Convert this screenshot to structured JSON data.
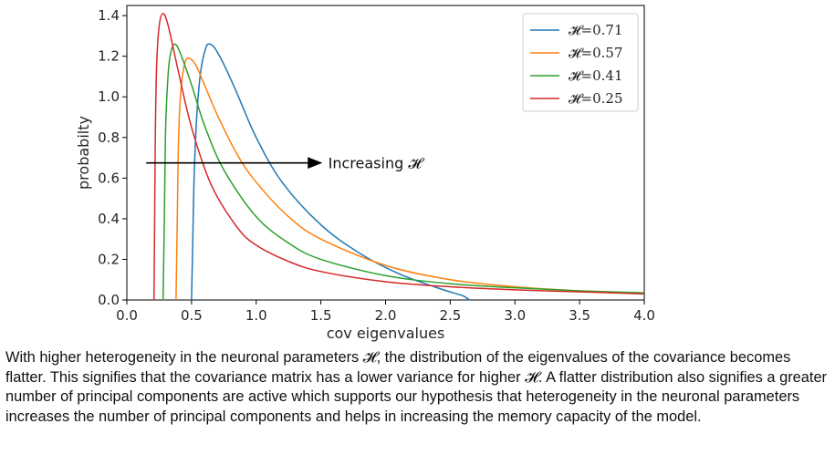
{
  "chart_data": {
    "type": "line",
    "xlabel": "cov eigenvalues",
    "ylabel": "probabilty",
    "xlim": [
      0.0,
      4.0
    ],
    "ylim": [
      0.0,
      1.45
    ],
    "x_ticks": [
      "0.0",
      "0.5",
      "1.0",
      "1.5",
      "2.0",
      "2.5",
      "3.0",
      "3.5",
      "4.0"
    ],
    "y_ticks": [
      "0.0",
      "0.2",
      "0.4",
      "0.6",
      "0.8",
      "1.0",
      "1.2",
      "1.4"
    ],
    "grid": false,
    "legend_position": "top-right",
    "series": [
      {
        "name": "𝓗=0.71",
        "color": "#1f77b4",
        "x": [
          0.5,
          0.51,
          0.52,
          0.54,
          0.57,
          0.61,
          0.64,
          0.68,
          0.75,
          0.85,
          1.0,
          1.2,
          1.5,
          1.8,
          2.1,
          2.4,
          2.55,
          2.6,
          2.65
        ],
        "y": [
          0.0,
          0.3,
          0.6,
          0.9,
          1.12,
          1.24,
          1.26,
          1.24,
          1.16,
          1.02,
          0.8,
          0.58,
          0.37,
          0.23,
          0.13,
          0.06,
          0.03,
          0.02,
          0.0
        ]
      },
      {
        "name": "𝓗=0.57",
        "color": "#ff7f0e",
        "x": [
          0.38,
          0.39,
          0.4,
          0.42,
          0.45,
          0.48,
          0.53,
          0.6,
          0.7,
          0.85,
          1.0,
          1.25,
          1.5,
          2.0,
          2.5,
          3.0,
          3.5,
          4.0
        ],
        "y": [
          0.0,
          0.4,
          0.8,
          1.05,
          1.17,
          1.19,
          1.16,
          1.06,
          0.91,
          0.72,
          0.58,
          0.41,
          0.3,
          0.17,
          0.1,
          0.065,
          0.045,
          0.035
        ]
      },
      {
        "name": "𝓗=0.41",
        "color": "#2ca02c",
        "x": [
          0.28,
          0.29,
          0.3,
          0.32,
          0.34,
          0.37,
          0.41,
          0.5,
          0.6,
          0.75,
          1.0,
          1.25,
          1.5,
          2.0,
          2.5,
          3.0,
          3.5,
          4.0
        ],
        "y": [
          0.0,
          0.4,
          0.85,
          1.12,
          1.22,
          1.26,
          1.22,
          1.06,
          0.86,
          0.64,
          0.41,
          0.28,
          0.2,
          0.12,
          0.08,
          0.06,
          0.045,
          0.035
        ]
      },
      {
        "name": "𝓗=0.25",
        "color": "#d62728",
        "x": [
          0.21,
          0.215,
          0.22,
          0.23,
          0.25,
          0.28,
          0.32,
          0.4,
          0.5,
          0.65,
          0.85,
          1.0,
          1.25,
          1.5,
          2.0,
          2.5,
          3.0,
          3.5,
          4.0
        ],
        "y": [
          0.0,
          0.4,
          0.8,
          1.15,
          1.35,
          1.41,
          1.35,
          1.12,
          0.85,
          0.57,
          0.36,
          0.27,
          0.19,
          0.14,
          0.09,
          0.065,
          0.05,
          0.04,
          0.03
        ]
      }
    ],
    "annotation": {
      "text": "Increasing 𝓗",
      "arrow_from": [
        0.15,
        0.675
      ],
      "arrow_to": [
        1.5,
        0.675
      ]
    }
  },
  "caption": "With higher heterogeneity in the neuronal parameters 𝓗, the distribution of the eigenvalues of the covariance becomes flatter. This signifies that the covariance matrix has a lower variance for higher 𝓗. A flatter distribution also signifies a greater number of principal components are active which supports our hypothesis that heterogeneity in the neuronal parameters increases the number of principal components and helps in increasing the memory capacity of the model."
}
